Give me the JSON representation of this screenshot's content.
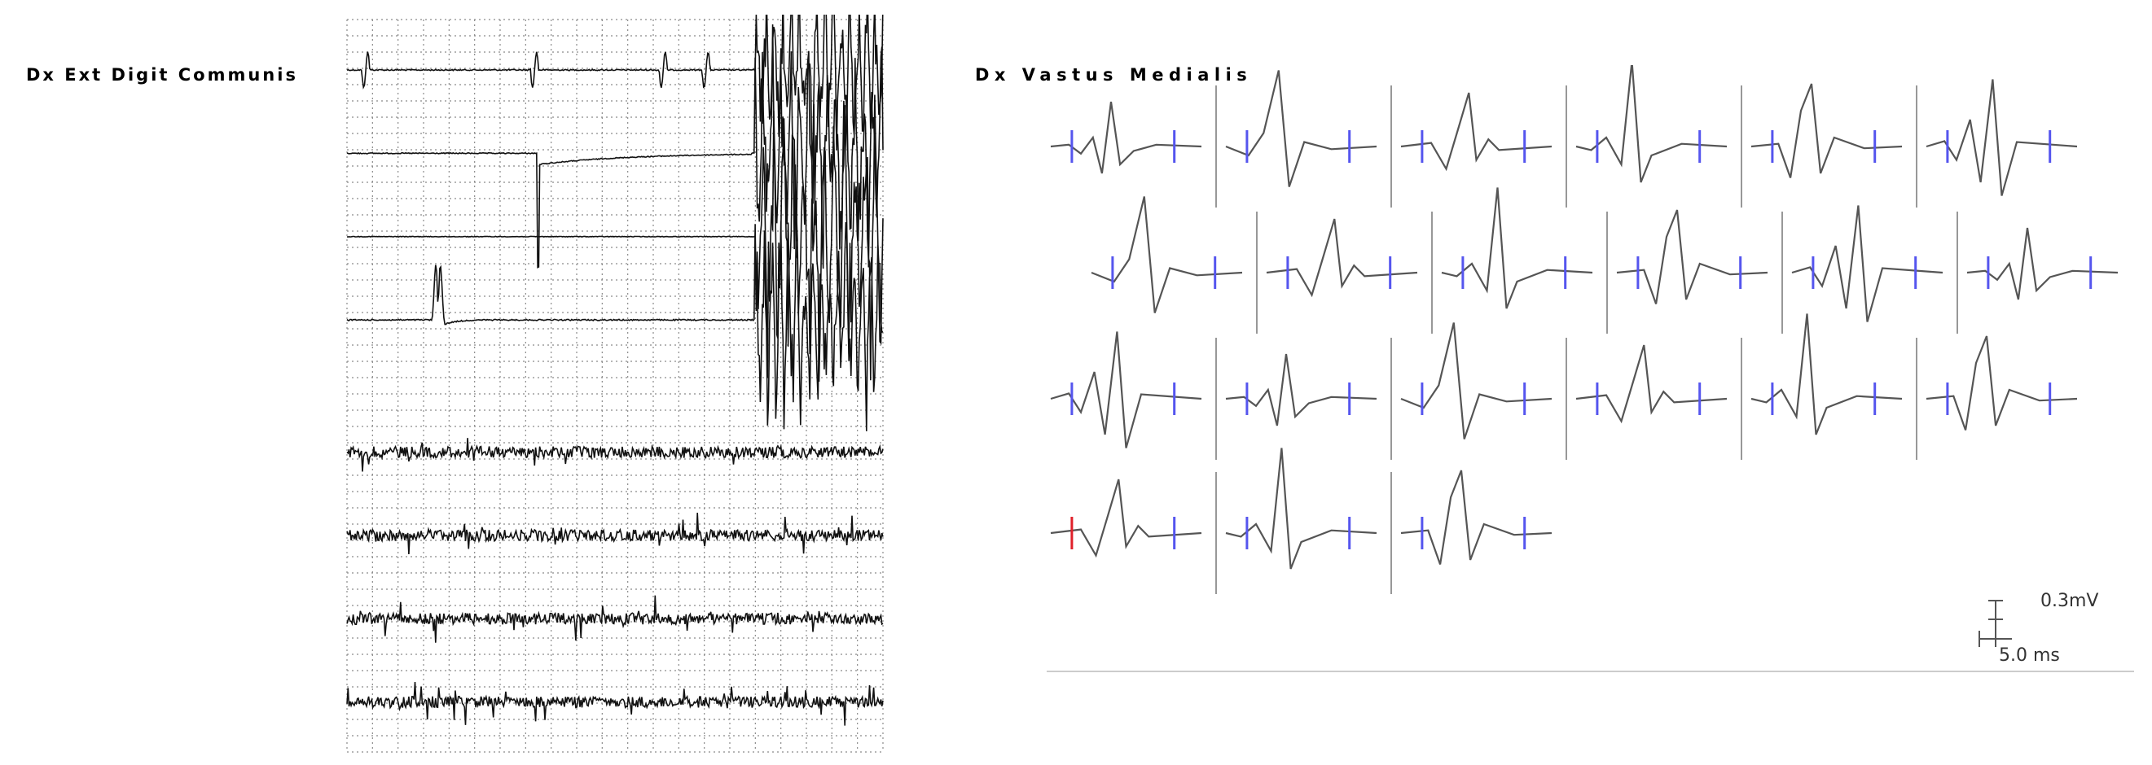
{
  "left_panel": {
    "title": "Dx Ext Digit Communis"
  },
  "right_panel": {
    "title": "Dx Vastus Medialis",
    "scale_voltage": "0.3mV",
    "scale_time": "5.0 ms"
  },
  "colors": {
    "trace": "#111111",
    "mup_trace": "#555555",
    "grid": "#8a8a8a",
    "marker": "#5555ee",
    "marker_selected": "#e0202a",
    "divider": "#777777"
  },
  "chart_data": [
    {
      "type": "line",
      "name": "raw-emg-traces",
      "rows": 8,
      "grid": true,
      "traces": [
        {
          "kind": "sparse_spikes",
          "spikes": [
            0.035,
            0.35,
            0.59,
            0.67,
            0.89
          ]
        },
        {
          "kind": "step_slow",
          "step_at": 0.355
        },
        {
          "kind": "flat"
        },
        {
          "kind": "slow_wave",
          "spike_at": 0.17
        },
        {
          "kind": "interference"
        },
        {
          "kind": "interference"
        },
        {
          "kind": "interference"
        },
        {
          "kind": "interference"
        }
      ]
    },
    {
      "type": "line",
      "name": "motor-unit-potentials",
      "grid": false,
      "rows": [
        [
          {
            "variant": 1
          },
          {
            "variant": 2
          },
          {
            "variant": 3
          },
          {
            "variant": 4
          },
          {
            "variant": 5
          },
          {
            "variant": 6
          }
        ],
        [
          {
            "variant": 2
          },
          {
            "variant": 3
          },
          {
            "variant": 4
          },
          {
            "variant": 5
          },
          {
            "variant": 6
          },
          {
            "variant": 1
          }
        ],
        [
          {
            "variant": 6
          },
          {
            "variant": 1
          },
          {
            "variant": 2
          },
          {
            "variant": 3
          },
          {
            "variant": 4
          },
          {
            "variant": 5
          }
        ],
        [
          {
            "variant": 3,
            "selected": true
          },
          {
            "variant": 4
          },
          {
            "variant": 5
          }
        ]
      ]
    }
  ]
}
